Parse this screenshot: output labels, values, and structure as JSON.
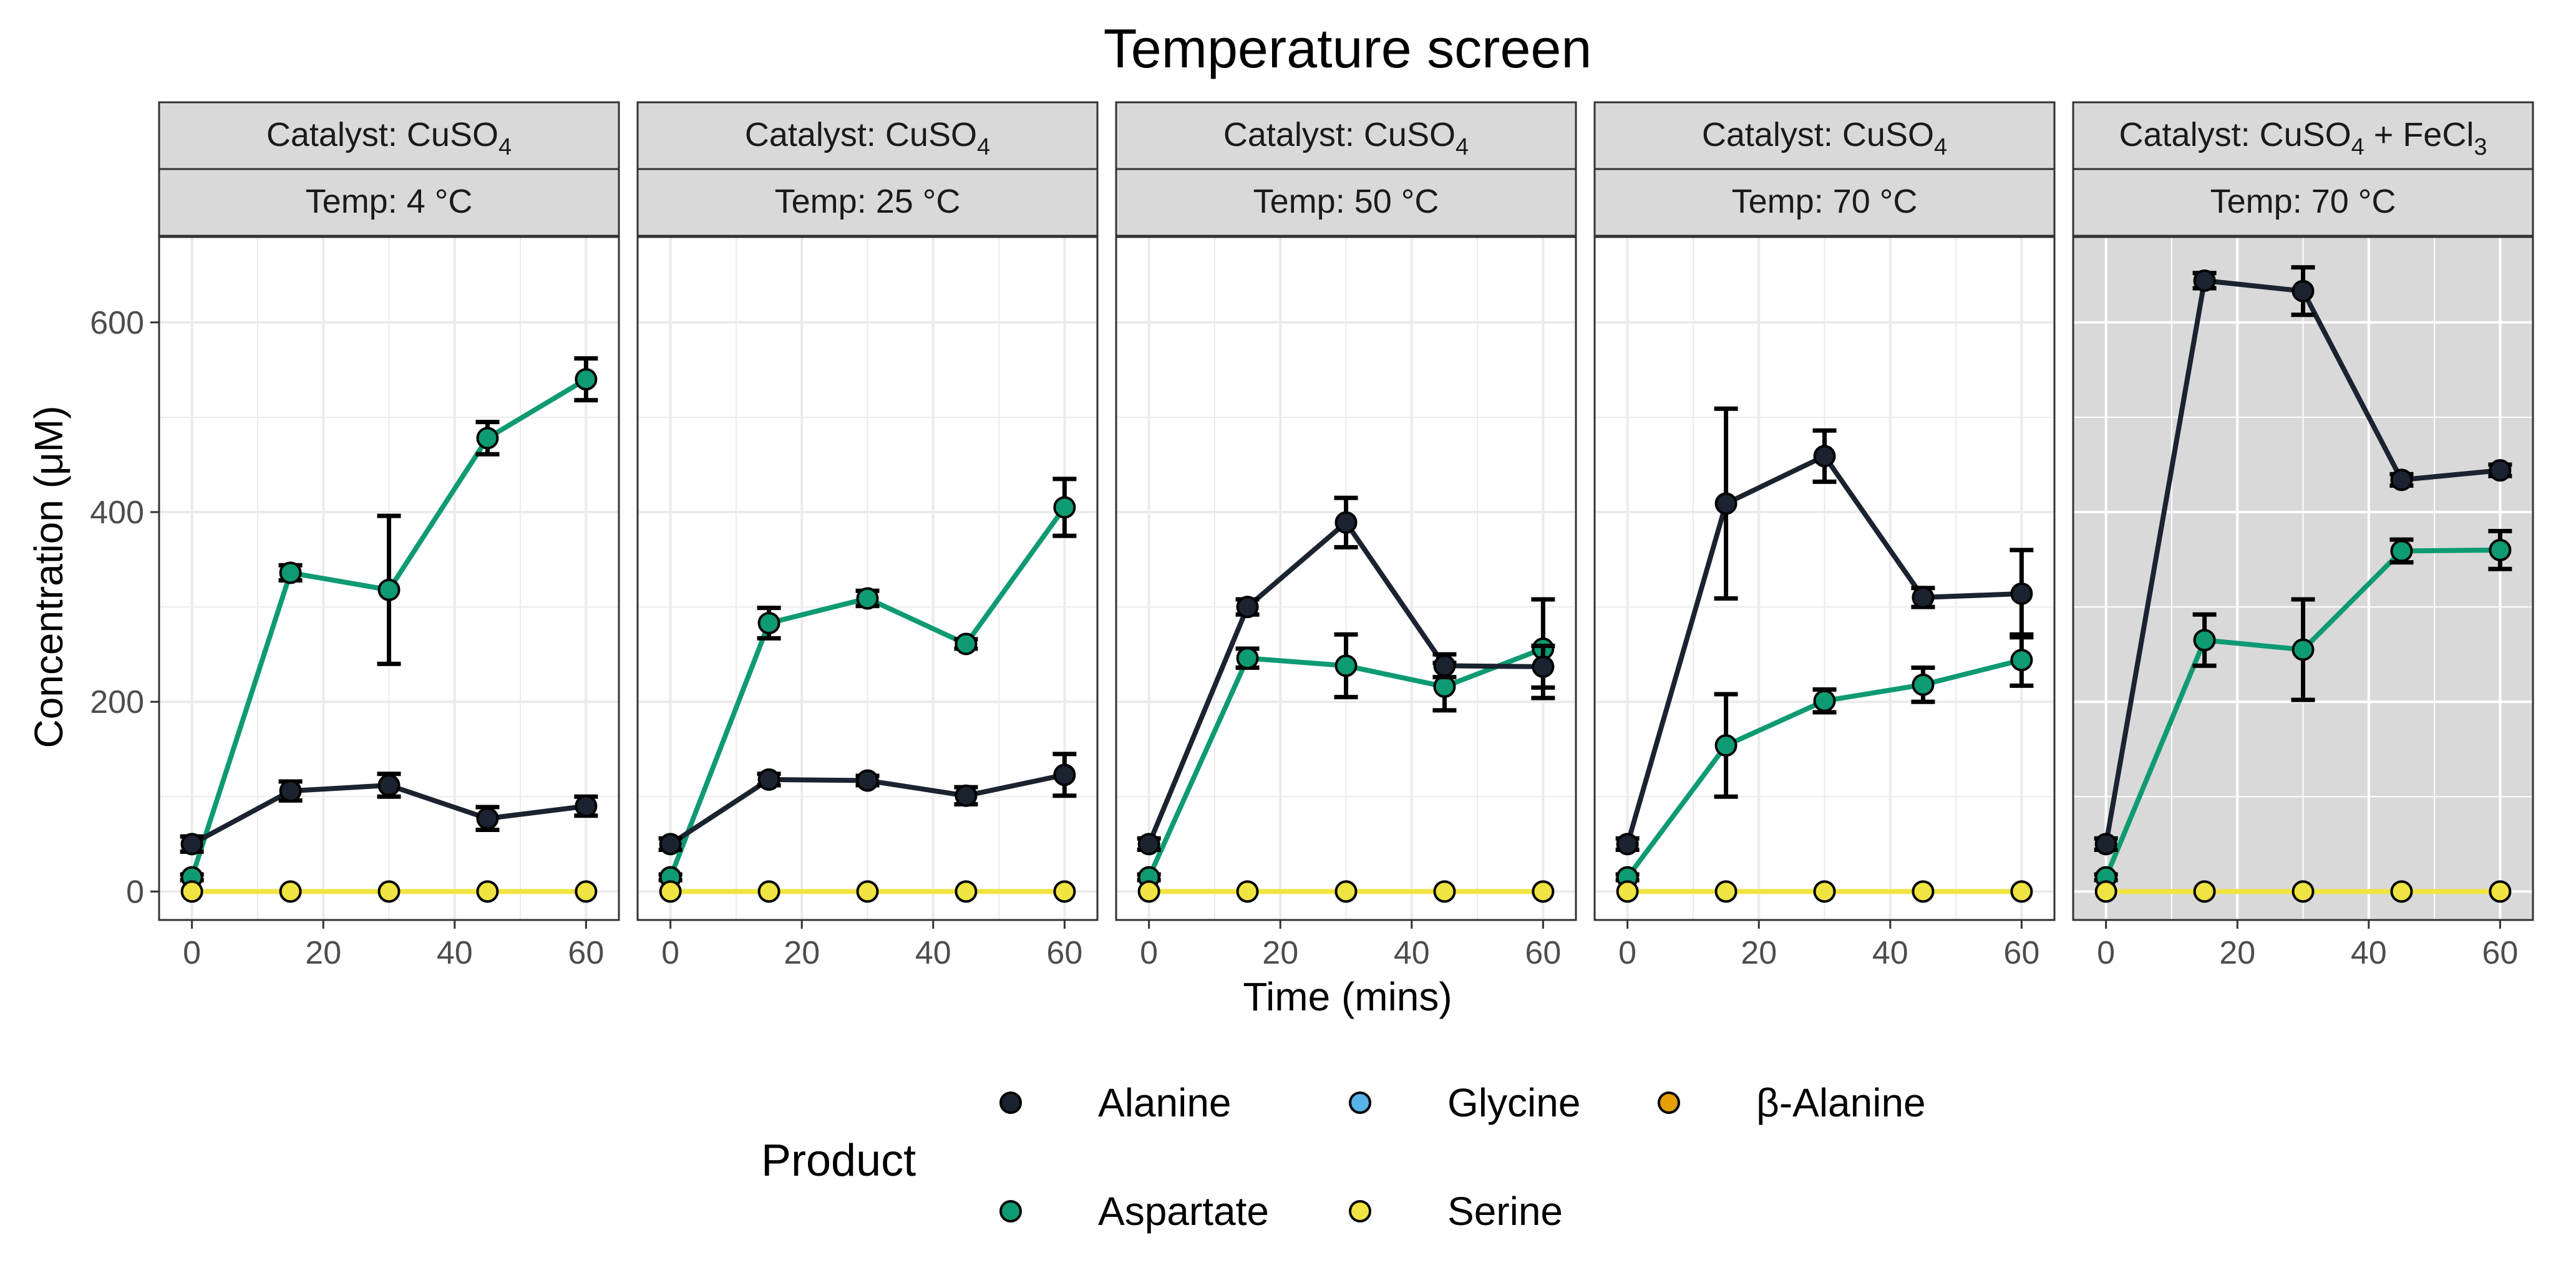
{
  "chart_data": {
    "type": "line",
    "title": "Temperature screen",
    "xlabel": "Time (mins)",
    "ylabel": "Concentration (μM)",
    "xlim": [
      -5,
      65
    ],
    "ylim": [
      -30,
      690
    ],
    "x_ticks": [
      0,
      20,
      40,
      60
    ],
    "y_ticks": [
      0,
      200,
      400,
      600
    ],
    "grid": true,
    "legend": {
      "title": "Product",
      "position": "bottom",
      "entries": [
        "Alanine",
        "Glycine",
        "β-Alanine",
        "Aspartate",
        "Serine"
      ]
    },
    "colors": {
      "Alanine": "#1b2330",
      "Aspartate": "#0e9a72",
      "Glycine": "#56b4e9",
      "β-Alanine": "#e69f00",
      "Serine": "#f0e442",
      "strip_fill": "#d9d9d9",
      "highlight_panel_bg": "#d9d9d9",
      "grid": "#ebebeb"
    },
    "x": [
      0,
      15,
      30,
      45,
      60
    ],
    "panels": [
      {
        "catalyst_prefix": "Catalyst: CuSO",
        "catalyst_sub": "4",
        "temp": "Temp: 4 °C",
        "highlight": false,
        "series": [
          {
            "name": "Alanine",
            "values": [
              50,
              106,
              112,
              77,
              90
            ],
            "errors": [
              8,
              10,
              12,
              12,
              10
            ]
          },
          {
            "name": "Aspartate",
            "values": [
              15,
              336,
              318,
              478,
              540
            ],
            "errors": [
              3,
              8,
              78,
              17,
              22
            ]
          },
          {
            "name": "Serine",
            "values": [
              0,
              0,
              0,
              0,
              0
            ],
            "errors": [
              0,
              0,
              0,
              0,
              0
            ]
          }
        ]
      },
      {
        "catalyst_prefix": "Catalyst: CuSO",
        "catalyst_sub": "4",
        "temp": "Temp: 25 °C",
        "highlight": false,
        "series": [
          {
            "name": "Alanine",
            "values": [
              50,
              118,
              117,
              101,
              123
            ],
            "errors": [
              6,
              6,
              5,
              9,
              22
            ]
          },
          {
            "name": "Aspartate",
            "values": [
              15,
              283,
              309,
              261,
              405
            ],
            "errors": [
              3,
              16,
              8,
              5,
              30
            ]
          },
          {
            "name": "Serine",
            "values": [
              0,
              0,
              0,
              0,
              0
            ],
            "errors": [
              0,
              0,
              0,
              0,
              0
            ]
          }
        ]
      },
      {
        "catalyst_prefix": "Catalyst: CuSO",
        "catalyst_sub": "4",
        "temp": "Temp: 50 °C",
        "highlight": false,
        "series": [
          {
            "name": "Alanine",
            "values": [
              50,
              300,
              389,
              238,
              237
            ],
            "errors": [
              6,
              8,
              26,
              12,
              22
            ]
          },
          {
            "name": "Aspartate",
            "values": [
              15,
              246,
              238,
              216,
              256
            ],
            "errors": [
              3,
              10,
              33,
              25,
              52
            ]
          },
          {
            "name": "Serine",
            "values": [
              0,
              0,
              0,
              0,
              0
            ],
            "errors": [
              0,
              0,
              0,
              0,
              0
            ]
          }
        ]
      },
      {
        "catalyst_prefix": "Catalyst: CuSO",
        "catalyst_sub": "4",
        "temp": "Temp: 70 °C",
        "highlight": false,
        "series": [
          {
            "name": "Alanine",
            "values": [
              50,
              409,
              459,
              310,
              314
            ],
            "errors": [
              6,
              100,
              27,
              10,
              46
            ]
          },
          {
            "name": "Aspartate",
            "values": [
              15,
              154,
              201,
              218,
              244
            ],
            "errors": [
              3,
              54,
              12,
              18,
              27
            ]
          },
          {
            "name": "Serine",
            "values": [
              0,
              0,
              0,
              0,
              0
            ],
            "errors": [
              0,
              0,
              0,
              0,
              0
            ]
          }
        ]
      },
      {
        "catalyst_prefix": "Catalyst: CuSO",
        "catalyst_sub": "4",
        "catalyst_suffix": " + FeCl",
        "catalyst_sub2": "3",
        "temp": "Temp: 70 °C",
        "highlight": true,
        "series": [
          {
            "name": "Alanine",
            "values": [
              50,
              644,
              633,
              434,
              444
            ],
            "errors": [
              6,
              8,
              25,
              6,
              6
            ]
          },
          {
            "name": "Aspartate",
            "values": [
              15,
              265,
              255,
              359,
              360
            ],
            "errors": [
              3,
              27,
              53,
              12,
              20
            ]
          },
          {
            "name": "Serine",
            "values": [
              0,
              0,
              0,
              0,
              0
            ],
            "errors": [
              0,
              0,
              0,
              0,
              0
            ]
          }
        ]
      }
    ]
  }
}
